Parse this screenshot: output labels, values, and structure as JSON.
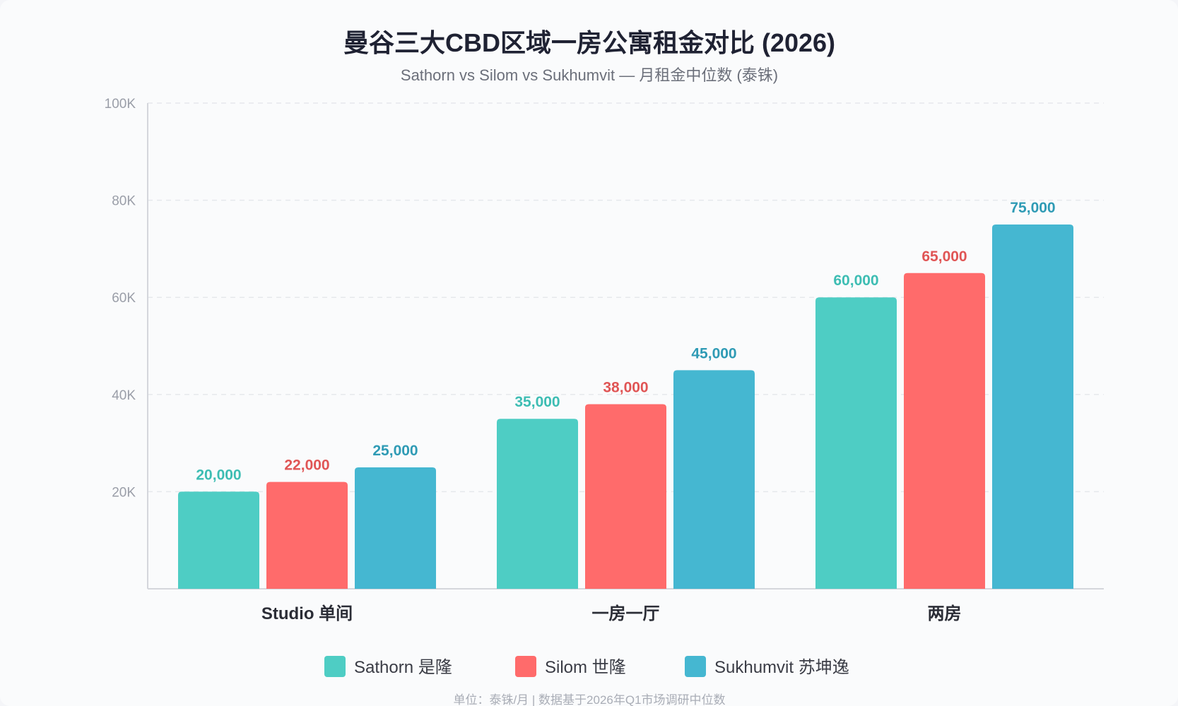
{
  "chart_data": {
    "type": "bar",
    "title": "曼谷三大CBD区域一房公寓租金对比 (2026)",
    "subtitle": "Sathorn vs Silom vs Sukhumvit — 月租金中位数 (泰铢)",
    "categories": [
      "Studio 单间",
      "一房一厅",
      "两房"
    ],
    "series": [
      {
        "name": "Sathorn 是隆",
        "color": "#4ecdc4",
        "label_color": "#3dbdb3",
        "values": [
          20000,
          35000,
          60000
        ],
        "labels": [
          "20,000",
          "35,000",
          "60,000"
        ]
      },
      {
        "name": "Silom 世隆",
        "color": "#ff6b6b",
        "label_color": "#e05555",
        "values": [
          22000,
          38000,
          65000
        ],
        "labels": [
          "22,000",
          "38,000",
          "65,000"
        ]
      },
      {
        "name": "Sukhumvit 苏坤逸",
        "color": "#45b7d1",
        "label_color": "#2f9bb5",
        "values": [
          25000,
          45000,
          75000
        ],
        "labels": [
          "25,000",
          "45,000",
          "75,000"
        ]
      }
    ],
    "ylim": [
      0,
      100000
    ],
    "yticks": [
      20000,
      40000,
      60000,
      80000,
      100000
    ],
    "ytick_labels": [
      "20K",
      "40K",
      "60K",
      "80K",
      "100K"
    ],
    "grid": true,
    "legend_position": "bottom-center",
    "footnote": "单位：泰铢/月 | 数据基于2026年Q1市场调研中位数"
  }
}
